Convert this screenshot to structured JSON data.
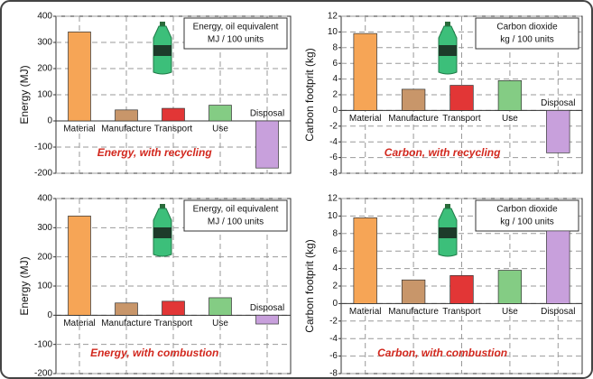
{
  "chart_data": [
    {
      "type": "bar",
      "ylabel": "Energy (MJ)",
      "note": [
        "Energy, oil equivalent",
        "MJ / 100 units"
      ],
      "caption": "Energy, with recycling",
      "categories": [
        "Material",
        "Manufacture",
        "Transport",
        "Use",
        "Disposal"
      ],
      "values": [
        340,
        42,
        48,
        60,
        -180
      ],
      "colors": [
        "#f6a556",
        "#c8966a",
        "#e23636",
        "#84cc84",
        "#c8a0dc"
      ],
      "ylim": [
        -200,
        400
      ],
      "yticks": [
        -200,
        -100,
        0,
        100,
        200,
        300,
        400
      ],
      "grid": true
    },
    {
      "type": "bar",
      "ylabel": "Carbon footprit (kg)",
      "note": [
        "Carbon dioxide",
        "kg / 100 units"
      ],
      "caption": "Carbon, with recycling",
      "categories": [
        "Material",
        "Manufacture",
        "Transport",
        "Use",
        "Disposal"
      ],
      "values": [
        9.8,
        2.7,
        3.2,
        3.8,
        -5.4
      ],
      "colors": [
        "#f6a556",
        "#c8966a",
        "#e23636",
        "#84cc84",
        "#c8a0dc"
      ],
      "ylim": [
        -8,
        12
      ],
      "yticks": [
        -8,
        -6,
        -4,
        -2,
        0,
        2,
        4,
        6,
        8,
        10,
        12
      ],
      "grid": true
    },
    {
      "type": "bar",
      "ylabel": "Energy (MJ)",
      "note": [
        "Energy, oil equivalent",
        "MJ / 100 units"
      ],
      "caption": "Energy, with combustion",
      "categories": [
        "Material",
        "Manufacture",
        "Transport",
        "Use",
        "Disposal"
      ],
      "values": [
        340,
        42,
        48,
        60,
        -30
      ],
      "colors": [
        "#f6a556",
        "#c8966a",
        "#e23636",
        "#84cc84",
        "#c8a0dc"
      ],
      "ylim": [
        -200,
        400
      ],
      "yticks": [
        -200,
        -100,
        0,
        100,
        200,
        300,
        400
      ],
      "grid": true
    },
    {
      "type": "bar",
      "ylabel": "Carbon footprit (kg)",
      "note": [
        "Carbon dioxide",
        "kg / 100 units"
      ],
      "caption": "Carbon, with combustion",
      "categories": [
        "Material",
        "Manufacture",
        "Transport",
        "Use",
        "Disposal"
      ],
      "values": [
        9.8,
        2.7,
        3.2,
        3.8,
        8.3
      ],
      "colors": [
        "#f6a556",
        "#c8966a",
        "#e23636",
        "#84cc84",
        "#c8a0dc"
      ],
      "ylim": [
        -8,
        12
      ],
      "yticks": [
        -8,
        -6,
        -4,
        -2,
        0,
        2,
        4,
        6,
        8,
        10,
        12
      ],
      "grid": true
    }
  ]
}
